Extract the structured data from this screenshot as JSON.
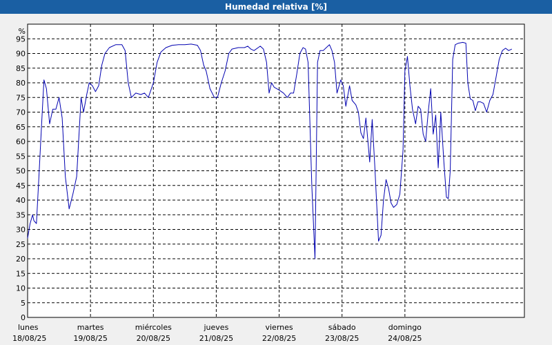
{
  "chart_data": {
    "type": "line",
    "title": "Humedad relativa [%]",
    "ylabel": "%",
    "xlabel": "",
    "ylim": [
      0,
      100
    ],
    "y_ticks": [
      0,
      5,
      10,
      15,
      20,
      25,
      30,
      35,
      40,
      45,
      50,
      55,
      60,
      65,
      70,
      75,
      80,
      85,
      90,
      95
    ],
    "grid": true,
    "x_ticks": [
      {
        "day": "lunes",
        "date": "18/08/25"
      },
      {
        "day": "martes",
        "date": "19/08/25"
      },
      {
        "day": "miércoles",
        "date": "20/08/25"
      },
      {
        "day": "jueves",
        "date": "21/08/25"
      },
      {
        "day": "viernes",
        "date": "22/08/25"
      },
      {
        "day": "sábado",
        "date": "23/08/25"
      },
      {
        "day": "domingo",
        "date": "24/08/25"
      }
    ],
    "series": [
      {
        "color": "#0000b0",
        "points": [
          [
            18.0,
            27
          ],
          [
            18.04,
            32
          ],
          [
            18.08,
            35
          ],
          [
            18.1,
            33
          ],
          [
            18.14,
            32
          ],
          [
            18.18,
            48
          ],
          [
            18.22,
            65
          ],
          [
            18.26,
            81
          ],
          [
            18.3,
            78
          ],
          [
            18.35,
            66
          ],
          [
            18.4,
            71
          ],
          [
            18.45,
            71
          ],
          [
            18.5,
            75
          ],
          [
            18.55,
            68
          ],
          [
            18.6,
            48
          ],
          [
            18.66,
            37
          ],
          [
            18.72,
            42
          ],
          [
            18.78,
            48
          ],
          [
            18.85,
            75
          ],
          [
            18.89,
            70
          ],
          [
            18.94,
            76
          ],
          [
            18.98,
            80
          ],
          [
            19.03,
            79
          ],
          [
            19.08,
            77
          ],
          [
            19.13,
            79
          ],
          [
            19.18,
            86
          ],
          [
            19.23,
            90
          ],
          [
            19.3,
            92
          ],
          [
            19.4,
            93
          ],
          [
            19.5,
            93
          ],
          [
            19.55,
            91
          ],
          [
            19.6,
            80
          ],
          [
            19.65,
            75
          ],
          [
            19.72,
            76.5
          ],
          [
            19.8,
            76
          ],
          [
            19.86,
            76.5
          ],
          [
            19.92,
            75
          ],
          [
            20.0,
            80
          ],
          [
            20.06,
            87
          ],
          [
            20.12,
            90.5
          ],
          [
            20.2,
            92
          ],
          [
            20.3,
            92.8
          ],
          [
            20.4,
            93
          ],
          [
            20.5,
            93
          ],
          [
            20.6,
            93.2
          ],
          [
            20.7,
            92.8
          ],
          [
            20.75,
            91
          ],
          [
            20.8,
            86
          ],
          [
            20.84,
            84
          ],
          [
            20.9,
            78
          ],
          [
            20.97,
            75
          ],
          [
            21.02,
            75
          ],
          [
            21.08,
            80
          ],
          [
            21.14,
            84
          ],
          [
            21.2,
            90
          ],
          [
            21.25,
            91.5
          ],
          [
            21.35,
            92
          ],
          [
            21.45,
            92
          ],
          [
            21.5,
            92.5
          ],
          [
            21.55,
            91.5
          ],
          [
            21.6,
            91
          ],
          [
            21.7,
            92.5
          ],
          [
            21.75,
            91.5
          ],
          [
            21.8,
            87
          ],
          [
            21.84,
            76.5
          ],
          [
            21.88,
            80
          ],
          [
            21.92,
            78.5
          ],
          [
            22.0,
            77.5
          ],
          [
            22.07,
            76.5
          ],
          [
            22.13,
            75
          ],
          [
            22.18,
            76.5
          ],
          [
            22.23,
            76.5
          ],
          [
            22.28,
            83
          ],
          [
            22.33,
            90
          ],
          [
            22.38,
            92
          ],
          [
            22.42,
            91.5
          ],
          [
            22.46,
            87
          ],
          [
            22.52,
            45
          ],
          [
            22.57,
            20
          ],
          [
            22.61,
            87
          ],
          [
            22.65,
            91
          ],
          [
            22.7,
            91
          ],
          [
            22.75,
            92
          ],
          [
            22.8,
            93
          ],
          [
            22.84,
            91
          ],
          [
            22.88,
            87
          ],
          [
            22.92,
            76.5
          ],
          [
            22.98,
            81
          ],
          [
            23.02,
            79
          ],
          [
            23.06,
            72
          ],
          [
            23.12,
            79
          ],
          [
            23.16,
            74
          ],
          [
            23.22,
            72.5
          ],
          [
            23.26,
            70
          ],
          [
            23.3,
            63
          ],
          [
            23.34,
            61
          ],
          [
            23.38,
            68
          ],
          [
            23.44,
            53
          ],
          [
            23.48,
            67.5
          ],
          [
            23.52,
            52
          ],
          [
            23.58,
            26
          ],
          [
            23.62,
            28
          ],
          [
            23.66,
            40
          ],
          [
            23.7,
            47
          ],
          [
            23.74,
            44
          ],
          [
            23.78,
            39
          ],
          [
            23.82,
            37.5
          ],
          [
            23.87,
            38.5
          ],
          [
            23.92,
            42
          ],
          [
            23.97,
            57
          ],
          [
            24.0,
            84
          ],
          [
            24.04,
            89
          ],
          [
            24.08,
            79
          ],
          [
            24.12,
            71
          ],
          [
            24.17,
            66
          ],
          [
            24.21,
            72
          ],
          [
            24.25,
            71
          ],
          [
            24.29,
            62.5
          ],
          [
            24.33,
            60
          ],
          [
            24.37,
            70
          ],
          [
            24.41,
            78
          ],
          [
            24.45,
            62.5
          ],
          [
            24.49,
            69
          ],
          [
            24.53,
            51
          ],
          [
            24.57,
            70
          ],
          [
            24.62,
            53
          ],
          [
            24.66,
            41
          ],
          [
            24.69,
            40.5
          ],
          [
            24.72,
            50
          ],
          [
            24.76,
            88
          ],
          [
            24.8,
            93
          ],
          [
            24.85,
            93.5
          ],
          [
            24.92,
            93.8
          ],
          [
            24.97,
            93.5
          ],
          [
            25.0,
            80
          ],
          [
            25.04,
            74.5
          ],
          [
            25.08,
            74
          ],
          [
            25.12,
            70.5
          ],
          [
            25.16,
            73.5
          ],
          [
            25.2,
            73.5
          ],
          [
            25.25,
            73
          ],
          [
            25.3,
            70
          ],
          [
            25.35,
            74
          ],
          [
            25.4,
            76
          ],
          [
            25.45,
            82
          ],
          [
            25.5,
            88
          ],
          [
            25.55,
            91
          ],
          [
            25.6,
            91.8
          ],
          [
            25.65,
            91
          ],
          [
            25.7,
            91.5
          ]
        ]
      }
    ]
  }
}
